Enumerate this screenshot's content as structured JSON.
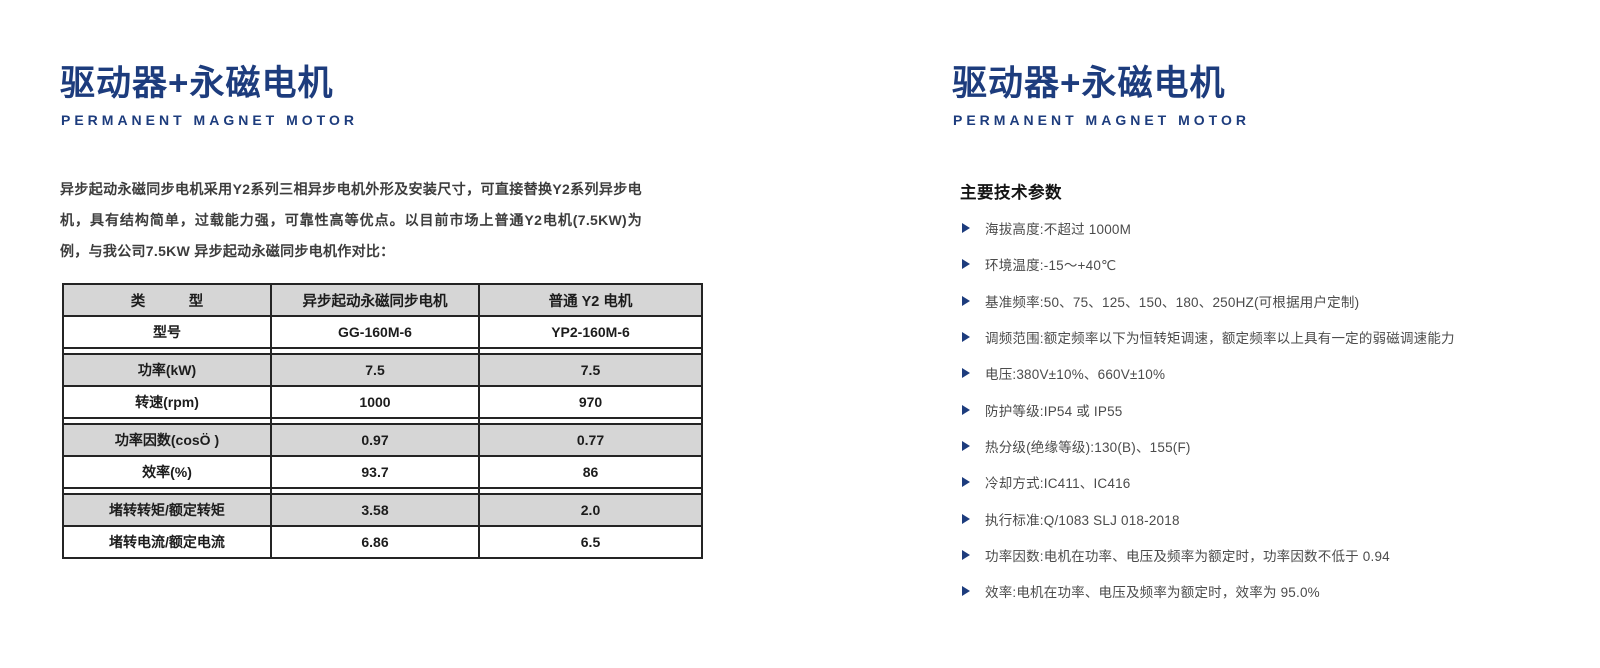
{
  "page": {
    "colors": {
      "accent_navy": "#1d3c7d",
      "table_shade_gray": "#d6d6d6",
      "table_border": "#242424",
      "body_text": "#3c3c3c",
      "spec_text": "#4b4b4b"
    },
    "left": {
      "title": "驱动器+永磁电机",
      "subtitle": "PERMANENT MAGNET MOTOR",
      "intro": "异步起动永磁同步电机采用Y2系列三相异步电机外形及安装尺寸，可直接替换Y2系列异步电机，具有结构简单，过载能力强，可靠性高等优点。以目前市场上普通Y2电机(7.5KW)为例，与我公司7.5KW 异步起动永磁同步电机作对比：",
      "table": {
        "columns": [
          "类　　　型",
          "异步起动永磁同步电机",
          "普通 Y2 电机"
        ],
        "rows": [
          {
            "label": "型号",
            "values": [
              "GG-160M-6",
              "YP2-160M-6"
            ]
          },
          {
            "label": "功率(kW)",
            "values": [
              "7.5",
              "7.5"
            ]
          },
          {
            "label": "转速(rpm)",
            "values": [
              "1000",
              "970"
            ]
          },
          {
            "label": "功率因数(cosÖ )",
            "values": [
              "0.97",
              "0.77"
            ]
          },
          {
            "label": "效率(%)",
            "values": [
              "93.7",
              "86"
            ]
          },
          {
            "label": "堵转转矩/额定转矩",
            "values": [
              "3.58",
              "2.0"
            ]
          },
          {
            "label": "堵转电流/额定电流",
            "values": [
              "6.86",
              "6.5"
            ]
          }
        ]
      }
    },
    "right": {
      "title": "驱动器+永磁电机",
      "subtitle": "PERMANENT MAGNET MOTOR",
      "section_heading": "主要技术参数",
      "specs": [
        "海拔高度:不超过 1000M",
        "环境温度:-15～+40℃",
        "基准频率:50、75、125、150、180、250HZ(可根据用户定制)",
        "调频范围:额定频率以下为恒转矩调速，额定频率以上具有一定的弱磁调速能力",
        "电压:380V±10%、660V±10%",
        "防护等级:IP54 或 IP55",
        "热分级(绝缘等级):130(B)、155(F)",
        "冷却方式:IC411、IC416",
        "执行标准:Q/1083 SLJ 018-2018",
        "功率因数:电机在功率、电压及频率为额定时，功率因数不低于 0.94",
        "效率:电机在功率、电压及频率为额定时，效率为 95.0%"
      ]
    }
  }
}
